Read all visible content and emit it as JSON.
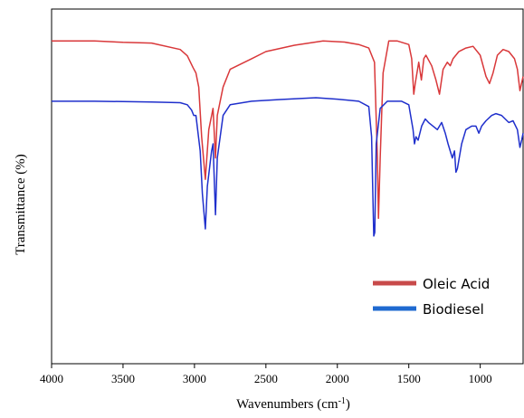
{
  "chart_data": {
    "type": "line",
    "title": "",
    "xlabel": "Wavenumbers (cm",
    "xlabel_sup": "-1",
    "xlabel_end": ")",
    "ylabel": "Transmittance (%)",
    "xlim": [
      4000,
      700
    ],
    "x_reversed": true,
    "ylim": [
      0,
      100
    ],
    "y_ticks_shown": false,
    "grid": false,
    "legend_position": "bottom-right",
    "x_ticks": [
      4000,
      3500,
      3000,
      2500,
      2000,
      1500,
      1000
    ],
    "series": [
      {
        "name": "Oleic Acid",
        "color": "#d9383a",
        "points": [
          [
            4000,
            91
          ],
          [
            3700,
            91
          ],
          [
            3500,
            90.6
          ],
          [
            3300,
            90.4
          ],
          [
            3100,
            88.6
          ],
          [
            3050,
            86.8
          ],
          [
            3010,
            83.5
          ],
          [
            2990,
            82
          ],
          [
            2970,
            78
          ],
          [
            2950,
            64
          ],
          [
            2924,
            52
          ],
          [
            2900,
            66
          ],
          [
            2870,
            72
          ],
          [
            2853,
            58
          ],
          [
            2840,
            70
          ],
          [
            2800,
            78
          ],
          [
            2750,
            83
          ],
          [
            2700,
            84
          ],
          [
            2600,
            86
          ],
          [
            2500,
            88
          ],
          [
            2300,
            89.8
          ],
          [
            2100,
            91
          ],
          [
            1950,
            90.7
          ],
          [
            1850,
            90
          ],
          [
            1780,
            89
          ],
          [
            1740,
            85
          ],
          [
            1720,
            58
          ],
          [
            1712,
            41
          ],
          [
            1700,
            58
          ],
          [
            1680,
            82
          ],
          [
            1640,
            91
          ],
          [
            1580,
            91
          ],
          [
            1500,
            90
          ],
          [
            1480,
            86
          ],
          [
            1465,
            76
          ],
          [
            1455,
            79
          ],
          [
            1430,
            85
          ],
          [
            1412,
            80
          ],
          [
            1395,
            86
          ],
          [
            1380,
            87
          ],
          [
            1340,
            84
          ],
          [
            1310,
            80
          ],
          [
            1285,
            76
          ],
          [
            1260,
            83
          ],
          [
            1230,
            85
          ],
          [
            1210,
            84
          ],
          [
            1190,
            86
          ],
          [
            1150,
            88
          ],
          [
            1100,
            89
          ],
          [
            1050,
            89.5
          ],
          [
            1000,
            87
          ],
          [
            960,
            81
          ],
          [
            935,
            79
          ],
          [
            910,
            82
          ],
          [
            880,
            87
          ],
          [
            840,
            88.6
          ],
          [
            800,
            88
          ],
          [
            760,
            86
          ],
          [
            740,
            83
          ],
          [
            722,
            77
          ],
          [
            700,
            81
          ]
        ]
      },
      {
        "name": "Biodiesel",
        "color": "#1f2fcc",
        "points": [
          [
            4000,
            74
          ],
          [
            3700,
            74
          ],
          [
            3500,
            73.9
          ],
          [
            3300,
            73.8
          ],
          [
            3100,
            73.6
          ],
          [
            3050,
            73
          ],
          [
            3020,
            71.5
          ],
          [
            3005,
            70
          ],
          [
            2990,
            70
          ],
          [
            2960,
            60
          ],
          [
            2945,
            48
          ],
          [
            2924,
            38
          ],
          [
            2910,
            50
          ],
          [
            2880,
            60
          ],
          [
            2870,
            62
          ],
          [
            2853,
            42
          ],
          [
            2840,
            58
          ],
          [
            2800,
            70
          ],
          [
            2750,
            73
          ],
          [
            2600,
            74
          ],
          [
            2400,
            74.5
          ],
          [
            2150,
            75
          ],
          [
            2000,
            74.6
          ],
          [
            1850,
            74
          ],
          [
            1780,
            72.5
          ],
          [
            1760,
            64
          ],
          [
            1745,
            36
          ],
          [
            1738,
            37
          ],
          [
            1728,
            62
          ],
          [
            1700,
            72
          ],
          [
            1650,
            74
          ],
          [
            1550,
            74
          ],
          [
            1500,
            73
          ],
          [
            1470,
            66
          ],
          [
            1460,
            62
          ],
          [
            1450,
            64
          ],
          [
            1435,
            63
          ],
          [
            1410,
            67
          ],
          [
            1385,
            69
          ],
          [
            1362,
            68
          ],
          [
            1330,
            67
          ],
          [
            1300,
            66
          ],
          [
            1270,
            68
          ],
          [
            1245,
            65
          ],
          [
            1225,
            62
          ],
          [
            1195,
            58
          ],
          [
            1180,
            60
          ],
          [
            1170,
            54
          ],
          [
            1160,
            55
          ],
          [
            1130,
            62
          ],
          [
            1100,
            66
          ],
          [
            1060,
            67
          ],
          [
            1030,
            67
          ],
          [
            1010,
            65
          ],
          [
            990,
            67
          ],
          [
            960,
            68.5
          ],
          [
            920,
            70
          ],
          [
            890,
            70.5
          ],
          [
            850,
            70
          ],
          [
            800,
            68
          ],
          [
            770,
            68.5
          ],
          [
            740,
            66
          ],
          [
            722,
            61
          ],
          [
            710,
            63
          ],
          [
            700,
            65
          ]
        ]
      }
    ]
  }
}
